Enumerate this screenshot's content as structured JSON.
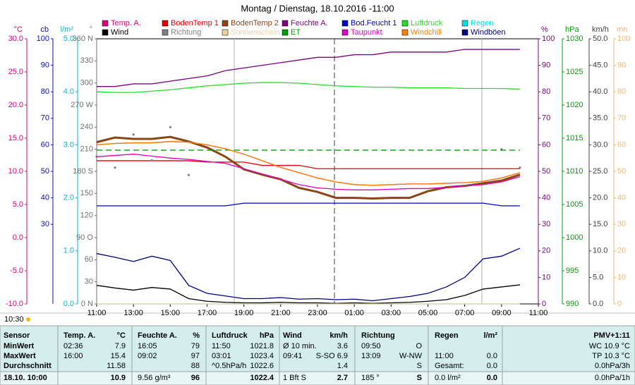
{
  "chart_data": {
    "type": "line",
    "title": "Montag / Dienstag, 18.10.2016 -11:00",
    "footer_time": "10:30",
    "x": [
      0,
      1,
      2,
      3,
      4,
      5,
      6,
      7,
      8,
      9,
      10,
      11,
      12,
      13,
      14,
      15,
      16,
      17,
      18,
      19,
      20,
      21,
      22,
      23
    ],
    "xlim": [
      0,
      24
    ],
    "xticks": [
      {
        "value": 0,
        "label": "11:00"
      },
      {
        "value": 2,
        "label": "13:00"
      },
      {
        "value": 4,
        "label": "15:00"
      },
      {
        "value": 6,
        "label": "17:00"
      },
      {
        "value": 8,
        "label": "19:00"
      },
      {
        "value": 10,
        "label": "21:00"
      },
      {
        "value": 12,
        "label": "23:00"
      },
      {
        "value": 14,
        "label": "01:00"
      },
      {
        "value": 16,
        "label": "03:00"
      },
      {
        "value": 18,
        "label": "05:00"
      },
      {
        "value": 20,
        "label": "07:00"
      },
      {
        "value": 22,
        "label": "09:00"
      },
      {
        "value": 24,
        "label": "11:00"
      }
    ],
    "axes": [
      {
        "unit": "°C",
        "color": "#e0007a",
        "lim": [
          -10,
          30
        ],
        "ticks": [
          {
            "value": -10,
            "label": "-10.0"
          },
          {
            "value": -5,
            "label": "-5.0"
          },
          {
            "value": 0,
            "label": "0.0"
          },
          {
            "value": 5,
            "label": "5.0"
          },
          {
            "value": 10,
            "label": "10.0"
          },
          {
            "value": 15,
            "label": "15.0"
          },
          {
            "value": 20,
            "label": "20.0"
          },
          {
            "value": 25,
            "label": "25.0"
          },
          {
            "value": 30,
            "label": "30.0"
          }
        ]
      },
      {
        "unit": "cb",
        "color": "#1010a0",
        "lim": [
          0,
          100
        ],
        "ticks": [
          30,
          40,
          50,
          60,
          70,
          80,
          90,
          100
        ]
      },
      {
        "unit": "l/m²",
        "color": "#00b8c8",
        "lim": [
          0,
          5
        ],
        "ticks": [
          {
            "value": 0,
            "label": "0.0"
          },
          {
            "value": 1,
            "label": "1.0"
          },
          {
            "value": 2,
            "label": "2.0"
          },
          {
            "value": 3,
            "label": "3.0"
          },
          {
            "value": 4,
            "label": "4.0"
          },
          {
            "value": 5,
            "label": "5.0"
          }
        ]
      },
      {
        "unit": "°",
        "color": "#707070",
        "lim": [
          0,
          360
        ],
        "ticks": [
          {
            "value": 0,
            "label": "0 N"
          },
          30,
          60,
          {
            "value": 90,
            "label": "90 O"
          },
          120,
          150,
          {
            "value": 180,
            "label": "180 S"
          },
          210,
          240,
          {
            "value": 270,
            "label": "270 W"
          },
          300,
          330,
          {
            "value": 360,
            "label": "360 N"
          }
        ]
      },
      {
        "unit": "%",
        "color": "#800080",
        "lim": [
          0,
          100
        ],
        "ticks": [
          0,
          10,
          20,
          30,
          40,
          50,
          60,
          70,
          80,
          90,
          100
        ]
      },
      {
        "unit": "hPa",
        "color": "#00a000",
        "lim": [
          990,
          1030
        ],
        "ticks": [
          990,
          995,
          1000,
          1005,
          1010,
          1015,
          1020,
          1025,
          1030
        ]
      },
      {
        "unit": "km/h",
        "color": "#404040",
        "lim": [
          0,
          50
        ],
        "ticks": [
          {
            "value": 0,
            "label": "0.0"
          },
          {
            "value": 5,
            "label": "5.0"
          },
          {
            "value": 10,
            "label": "10.0"
          },
          {
            "value": 15,
            "label": "15.0"
          },
          {
            "value": 20,
            "label": "20.0"
          },
          {
            "value": 25,
            "label": "25.0"
          },
          {
            "value": 30,
            "label": "30.0"
          },
          {
            "value": 35,
            "label": "35.0"
          },
          {
            "value": 40,
            "label": "40.0"
          },
          {
            "value": 45,
            "label": "45.0"
          },
          {
            "value": 50,
            "label": "50.0"
          }
        ]
      },
      {
        "unit": "mn",
        "color": "#e8b878",
        "lim": [
          0,
          100
        ],
        "ticks": [
          0,
          10,
          20,
          30,
          40,
          50,
          60,
          70,
          80,
          90,
          100
        ]
      }
    ],
    "series": [
      {
        "name": "Temp. A.",
        "color": "#e0007a",
        "axis": 0,
        "values": [
          14.0,
          14.2,
          14.3,
          14.3,
          14.5,
          14.4,
          14.0,
          13.4,
          12.6,
          11.6,
          10.6,
          9.8,
          9.0,
          8.4,
          8.0,
          7.9,
          8.0,
          8.1,
          8.1,
          8.2,
          8.3,
          8.5,
          9.0,
          9.8
        ]
      },
      {
        "name": "BodenTemp 1",
        "color": "#e00000",
        "axis": 0,
        "values": [
          11.6,
          11.6,
          11.6,
          11.6,
          11.6,
          11.6,
          11.4,
          11.4,
          11.4,
          10.9,
          10.9,
          10.9,
          10.4,
          10.4,
          10.4,
          10.4,
          10.4,
          10.4,
          10.4,
          10.4,
          10.4,
          10.4,
          10.4,
          10.4
        ]
      },
      {
        "name": "BodenTemp 2",
        "color": "#8b4513",
        "axis": 0,
        "values": [
          14.4,
          15.1,
          14.9,
          14.9,
          15.2,
          14.5,
          13.6,
          12.2,
          10.3,
          9.5,
          8.8,
          7.5,
          6.9,
          6.0,
          6.0,
          5.9,
          6.0,
          6.0,
          7.0,
          7.6,
          7.8,
          8.2,
          8.6,
          9.5
        ]
      },
      {
        "name": "Feuchte A.",
        "color": "#800080",
        "axis": 4,
        "values": [
          82,
          82,
          83,
          83,
          84,
          85,
          86,
          88,
          89,
          90,
          91,
          92,
          93,
          93,
          94,
          94,
          95,
          95,
          95,
          95,
          96,
          96,
          96,
          96
        ]
      },
      {
        "name": "Bod.Feucht 1",
        "color": "#0000d0",
        "axis": 4,
        "values": [
          37,
          37,
          37,
          37,
          37,
          37,
          37,
          37,
          38,
          38,
          38,
          38,
          38,
          38,
          38,
          38,
          38,
          38,
          38,
          38,
          38,
          38,
          37,
          37
        ]
      },
      {
        "name": "Luftdruck",
        "color": "#20e020",
        "axis": 5,
        "values": [
          1022.0,
          1021.9,
          1021.9,
          1022.1,
          1022.3,
          1022.6,
          1022.9,
          1023.1,
          1023.3,
          1023.4,
          1023.4,
          1023.3,
          1023.1,
          1022.9,
          1022.8,
          1022.7,
          1022.7,
          1022.6,
          1022.6,
          1022.6,
          1022.5,
          1022.5,
          1022.5,
          1022.4
        ]
      },
      {
        "name": "Regen",
        "color": "#00e0e0",
        "axis": 2,
        "values": [
          0,
          0,
          0,
          0,
          0,
          0,
          0,
          0,
          0,
          0,
          0,
          0,
          0,
          0,
          0,
          0,
          0,
          0,
          0,
          0,
          0,
          0,
          0,
          0
        ]
      },
      {
        "name": "Wind",
        "color": "#000000",
        "axis": 6,
        "values": [
          3.5,
          3.0,
          2.6,
          3.1,
          2.8,
          1.0,
          0.5,
          0.3,
          0.2,
          0.2,
          0.3,
          0.2,
          0.2,
          0.1,
          0.2,
          0.1,
          0.2,
          0.3,
          0.5,
          0.8,
          1.6,
          2.8,
          3.2,
          3.6
        ]
      },
      {
        "name": "Richtung",
        "color": "#808080",
        "axis": 3,
        "marker": "dot",
        "values": [
          200,
          185,
          230,
          195,
          240,
          175,
          null,
          null,
          null,
          null,
          null,
          null,
          null,
          null,
          null,
          null,
          null,
          null,
          null,
          null,
          null,
          null,
          210,
          185
        ]
      },
      {
        "name": "Sonnenschein",
        "color": "#f0d0a0",
        "axis": 7,
        "values": [
          0,
          0,
          0,
          0,
          0,
          0,
          0,
          0,
          0,
          0,
          0,
          0,
          0,
          0,
          0,
          0,
          0,
          0,
          0,
          0,
          0,
          0,
          0,
          0
        ]
      },
      {
        "name": "ET",
        "color": "#00a000",
        "axis": 2,
        "dashed": true,
        "values": [
          2.9,
          2.9,
          2.9,
          2.9,
          2.9,
          2.9,
          2.9,
          2.9,
          2.9,
          2.9,
          2.9,
          2.9,
          2.9,
          2.9,
          2.9,
          2.9,
          2.9,
          2.9,
          2.9,
          2.9,
          2.9,
          2.9,
          2.9,
          2.9
        ]
      },
      {
        "name": "Taupunkt",
        "color": "#e000c0",
        "axis": 0,
        "values": [
          12.2,
          12.4,
          12.6,
          12.3,
          12.0,
          11.8,
          11.5,
          11.2,
          10.4,
          9.6,
          8.8,
          8.0,
          7.5,
          7.3,
          7.2,
          7.2,
          7.3,
          7.4,
          7.4,
          7.6,
          7.8,
          8.0,
          8.4,
          9.2
        ]
      },
      {
        "name": "Windchill",
        "color": "#ff8000",
        "axis": 0,
        "values": [
          14.0,
          14.2,
          14.3,
          14.3,
          14.5,
          14.4,
          14.0,
          13.4,
          12.6,
          11.6,
          10.6,
          9.8,
          9.0,
          8.4,
          8.0,
          7.9,
          8.0,
          8.1,
          8.1,
          8.2,
          8.3,
          8.5,
          9.0,
          9.8
        ]
      },
      {
        "name": "Windböen",
        "color": "#000080",
        "axis": 6,
        "values": [
          9.5,
          8.8,
          8.0,
          9.0,
          8.2,
          3.5,
          2.0,
          1.5,
          1.0,
          1.0,
          1.2,
          0.9,
          1.0,
          0.8,
          0.9,
          0.6,
          1.0,
          1.4,
          2.0,
          3.2,
          5.0,
          8.5,
          9.0,
          10.5
        ]
      }
    ]
  },
  "table": {
    "rows": [
      [
        "Sensor",
        "Temp. A.",
        "°C",
        "Feuchte A.",
        "%",
        "Luftdruck",
        "hPa",
        "Wind",
        "km/h",
        "Richtung",
        null,
        "Regen",
        "l/m²",
        "PMV+1:11"
      ],
      [
        "MinWert",
        "02:36",
        "7.9",
        "16:05",
        "79",
        "11:50",
        "1021.8",
        "Ø 10 min.",
        "3.6",
        "09:50",
        "O",
        null,
        null,
        "WC 10.9 °C"
      ],
      [
        "MaxWert",
        "16:00",
        "15.4",
        "09:02",
        "97",
        "03:01",
        "1023.4",
        "09:41",
        "S-SO 6.9",
        "13:09",
        "W-NW",
        "11:00",
        "0.0",
        "TP 10.3 °C"
      ],
      [
        "Durchschnitt",
        null,
        "11.58",
        null,
        "88",
        "^0.5hPa/h",
        "1022.6",
        null,
        "1.4",
        null,
        "S",
        "Gesamt:",
        "0.0",
        "0.0hPa/3h"
      ],
      [
        "18.10. 10:00",
        null,
        "10.9",
        "9.56 g/m³",
        "96",
        null,
        "1022.4",
        "1 Bft S",
        "2.7",
        "185 °",
        "S",
        "0.0 l/m²",
        "0.0",
        "0.0hPa/1h"
      ]
    ]
  }
}
